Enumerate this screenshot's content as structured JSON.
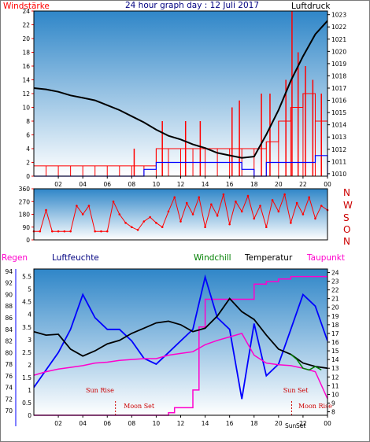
{
  "title": "24 hour graph day : 12 Juli 2017",
  "colors": {
    "red": "#ff0000",
    "blue": "#0000ff",
    "black": "#000000",
    "magenta": "#ff00cc",
    "green": "#008000",
    "darkblue": "#000080",
    "plot_top": "#2f86c8",
    "plot_bottom": "#ffffff"
  },
  "chart_data": [
    {
      "name_label_left": "Windstärke",
      "name_label_right": "Luftdruck",
      "type": "line",
      "x_ticks": [
        "02",
        "04",
        "06",
        "08",
        "10",
        "12",
        "14",
        "16",
        "18",
        "20",
        "22",
        "00"
      ],
      "y_left_ticks": [
        "0",
        "2",
        "4",
        "6",
        "8",
        "10",
        "12",
        "14",
        "16",
        "18",
        "20",
        "22",
        "24"
      ],
      "y_right_ticks": [
        "1010",
        "1011",
        "1012",
        "1013",
        "1014",
        "1015",
        "1016",
        "1017",
        "1018",
        "1019",
        "1020",
        "1021",
        "1022",
        "1023"
      ],
      "ylim_left": [
        0,
        24
      ],
      "ylim_right": [
        1009.8,
        1023.3
      ],
      "series": [
        {
          "name": "Luftdruck",
          "axis": "right",
          "color": "#000000",
          "x": [
            0,
            1,
            2,
            3,
            4,
            5,
            6,
            7,
            8,
            9,
            10,
            11,
            12,
            13,
            14,
            15,
            16,
            17,
            18,
            19,
            20,
            21,
            22,
            23,
            24
          ],
          "y": [
            1017.0,
            1016.9,
            1016.7,
            1016.4,
            1016.2,
            1016.0,
            1015.6,
            1015.2,
            1014.7,
            1014.2,
            1013.6,
            1013.1,
            1012.8,
            1012.4,
            1012.1,
            1011.7,
            1011.5,
            1011.3,
            1011.4,
            1013.2,
            1015.2,
            1017.6,
            1019.6,
            1021.4,
            1022.5
          ]
        },
        {
          "name": "Windstärke",
          "axis": "left",
          "color": "#ff0000",
          "x": [
            0,
            1,
            2,
            3,
            4,
            5,
            6,
            7,
            8,
            9,
            10,
            11,
            12,
            13,
            14,
            15,
            16,
            17,
            18,
            19,
            20,
            21,
            22,
            23,
            24
          ],
          "y": [
            1.5,
            1.5,
            1.5,
            1.5,
            1.5,
            1.5,
            1.5,
            1.5,
            1.5,
            1.5,
            4,
            4,
            4,
            4,
            4,
            4,
            4,
            4,
            4,
            5,
            8,
            10,
            12,
            8,
            4
          ],
          "peaks": [
            {
              "x": 8.2,
              "y": 4
            },
            {
              "x": 10.5,
              "y": 8
            },
            {
              "x": 12.4,
              "y": 8
            },
            {
              "x": 13.6,
              "y": 8
            },
            {
              "x": 16.2,
              "y": 10
            },
            {
              "x": 16.8,
              "y": 11
            },
            {
              "x": 18.6,
              "y": 12
            },
            {
              "x": 19.3,
              "y": 12
            },
            {
              "x": 20.6,
              "y": 14
            },
            {
              "x": 21.1,
              "y": 24
            },
            {
              "x": 21.6,
              "y": 18
            },
            {
              "x": 22.2,
              "y": 16
            },
            {
              "x": 22.8,
              "y": 14
            },
            {
              "x": 23.5,
              "y": 12
            }
          ]
        },
        {
          "name": "Windstärke (mean)",
          "axis": "left",
          "color": "#0000ff",
          "x": [
            0,
            2,
            4,
            6,
            8,
            9,
            10,
            11,
            12,
            13,
            14,
            15,
            16,
            17,
            18,
            19,
            20,
            21,
            22,
            23,
            24
          ],
          "y": [
            0,
            0,
            0,
            0,
            0,
            1,
            2,
            2,
            2,
            2,
            2,
            2,
            2,
            1,
            0,
            2,
            2,
            2,
            2,
            3,
            0
          ]
        }
      ]
    },
    {
      "type": "scatter",
      "name": "Windrichtung",
      "y_ticks": [
        "0",
        "90",
        "180",
        "270",
        "360"
      ],
      "ylim": [
        0,
        360
      ],
      "direction_labels": [
        "N",
        "W",
        "S",
        "O",
        "N"
      ],
      "series": [
        {
          "name": "Windrichtung",
          "color": "#ff0000",
          "x": [
            0,
            0.5,
            1,
            1.5,
            2,
            2.5,
            3,
            3.5,
            4,
            4.5,
            5,
            5.5,
            6,
            6.5,
            7,
            7.5,
            8,
            8.5,
            9,
            9.5,
            10,
            10.5,
            11,
            11.5,
            12,
            12.5,
            13,
            13.5,
            14,
            14.5,
            15,
            15.5,
            16,
            16.5,
            17,
            17.5,
            18,
            18.5,
            19,
            19.5,
            20,
            20.5,
            21,
            21.5,
            22,
            22.5,
            23,
            23.5,
            24
          ],
          "y": [
            60,
            60,
            210,
            60,
            60,
            60,
            60,
            240,
            180,
            240,
            60,
            60,
            60,
            270,
            180,
            120,
            90,
            70,
            130,
            160,
            120,
            90,
            200,
            300,
            130,
            260,
            180,
            300,
            90,
            250,
            170,
            320,
            110,
            270,
            200,
            310,
            150,
            240,
            90,
            280,
            200,
            320,
            120,
            260,
            180,
            300,
            150,
            240,
            210
          ]
        }
      ]
    },
    {
      "labels": {
        "regen": "Regen",
        "luftfeuchte": "Luftfeuchte",
        "windchill": "Windchill",
        "temperatur": "Temperatur",
        "taupunkt": "Taupunkt"
      },
      "type": "line",
      "x_ticks": [
        "02",
        "04",
        "06",
        "08",
        "10",
        "12",
        "14",
        "16",
        "18",
        "20",
        "22",
        "00"
      ],
      "y_rain_ticks": [
        "0",
        "0.5",
        "1",
        "1.5",
        "2",
        "2.5",
        "3",
        "3.5",
        "4",
        "4.5",
        "5",
        "5.5"
      ],
      "y_hum_ticks": [
        "70",
        "72",
        "74",
        "76",
        "78",
        "80",
        "82",
        "84",
        "86",
        "88",
        "90",
        "92",
        "94"
      ],
      "y_temp_ticks": [
        "8",
        "9",
        "10",
        "11",
        "12",
        "13",
        "14",
        "15",
        "16",
        "17",
        "18",
        "19",
        "20",
        "21",
        "22",
        "23",
        "24"
      ],
      "ylim_temp": [
        7.6,
        24.4
      ],
      "ylim_hum": [
        69.2,
        94.4
      ],
      "annotations": [
        {
          "text": "Sun Rise",
          "x": 5.4,
          "row": "upper"
        },
        {
          "text": "Moon Set",
          "x": 8.6,
          "row": "lower"
        },
        {
          "text": "Sun Set",
          "x": 21.4,
          "row": "upper"
        },
        {
          "text": "Moon Rise",
          "x": 23.0,
          "row": "lower"
        }
      ],
      "x_extra_labels": [
        "Sun",
        "Set"
      ],
      "series": [
        {
          "name": "Temperatur",
          "axis": "temp",
          "color": "#000000",
          "x": [
            0,
            1,
            2,
            3,
            4,
            5,
            6,
            7,
            8,
            9,
            10,
            11,
            12,
            13,
            14,
            15,
            16,
            17,
            18,
            19,
            20,
            21,
            22,
            23,
            24
          ],
          "y": [
            17.2,
            16.8,
            16.9,
            15.2,
            14.4,
            15.0,
            15.8,
            16.2,
            17.0,
            17.6,
            18.2,
            18.4,
            18.0,
            17.2,
            17.6,
            19.0,
            21.0,
            19.5,
            18.6,
            16.8,
            15.2,
            14.6,
            13.6,
            13.2,
            13.0
          ]
        },
        {
          "name": "Luftfeuchte",
          "axis": "hum",
          "color": "#0000ff",
          "x": [
            0,
            1,
            2,
            3,
            4,
            5,
            6,
            7,
            8,
            9,
            10,
            11,
            12,
            13,
            14,
            15,
            16,
            17,
            18,
            19,
            20,
            21,
            22,
            23,
            24
          ],
          "y": [
            74,
            77,
            80,
            84,
            90,
            86,
            84,
            84,
            82,
            79,
            78,
            80,
            82,
            84,
            93,
            86,
            84,
            72,
            85,
            76,
            78,
            84,
            90,
            88,
            82
          ]
        },
        {
          "name": "Taupunkt",
          "axis": "temp",
          "color": "#ff00cc",
          "x": [
            0,
            1,
            2,
            3,
            4,
            5,
            6,
            7,
            8,
            9,
            10,
            11,
            12,
            13,
            14,
            15,
            16,
            17,
            18,
            19,
            20,
            21,
            22,
            23,
            24
          ],
          "y": [
            12.2,
            12.6,
            12.9,
            13.1,
            13.3,
            13.6,
            13.7,
            13.9,
            14.0,
            14.1,
            14.1,
            14.5,
            14.7,
            14.9,
            15.7,
            16.2,
            16.6,
            17.0,
            14.5,
            13.6,
            13.4,
            13.3,
            13.0,
            12.6,
            9.5
          ]
        },
        {
          "name": "Windchill",
          "axis": "temp",
          "color": "#008000",
          "x": [
            21,
            21.5,
            22,
            22.5,
            23,
            23.5
          ],
          "y": [
            14.6,
            14.0,
            13.0,
            12.8,
            13.2,
            12.8
          ]
        },
        {
          "name": "Regen",
          "axis": "rain",
          "color": "#ff00cc",
          "x": [
            0,
            6,
            10,
            11,
            11.5,
            12,
            12.5,
            13,
            13.5,
            14,
            15,
            16,
            17,
            18,
            19,
            20,
            21,
            22,
            23,
            24
          ],
          "y": [
            0,
            0,
            0,
            0.1,
            0.3,
            0.3,
            0.3,
            1.0,
            3.5,
            4.6,
            4.6,
            4.6,
            4.6,
            5.2,
            5.3,
            5.4,
            5.5,
            5.5,
            5.5,
            5.5
          ]
        }
      ]
    }
  ]
}
